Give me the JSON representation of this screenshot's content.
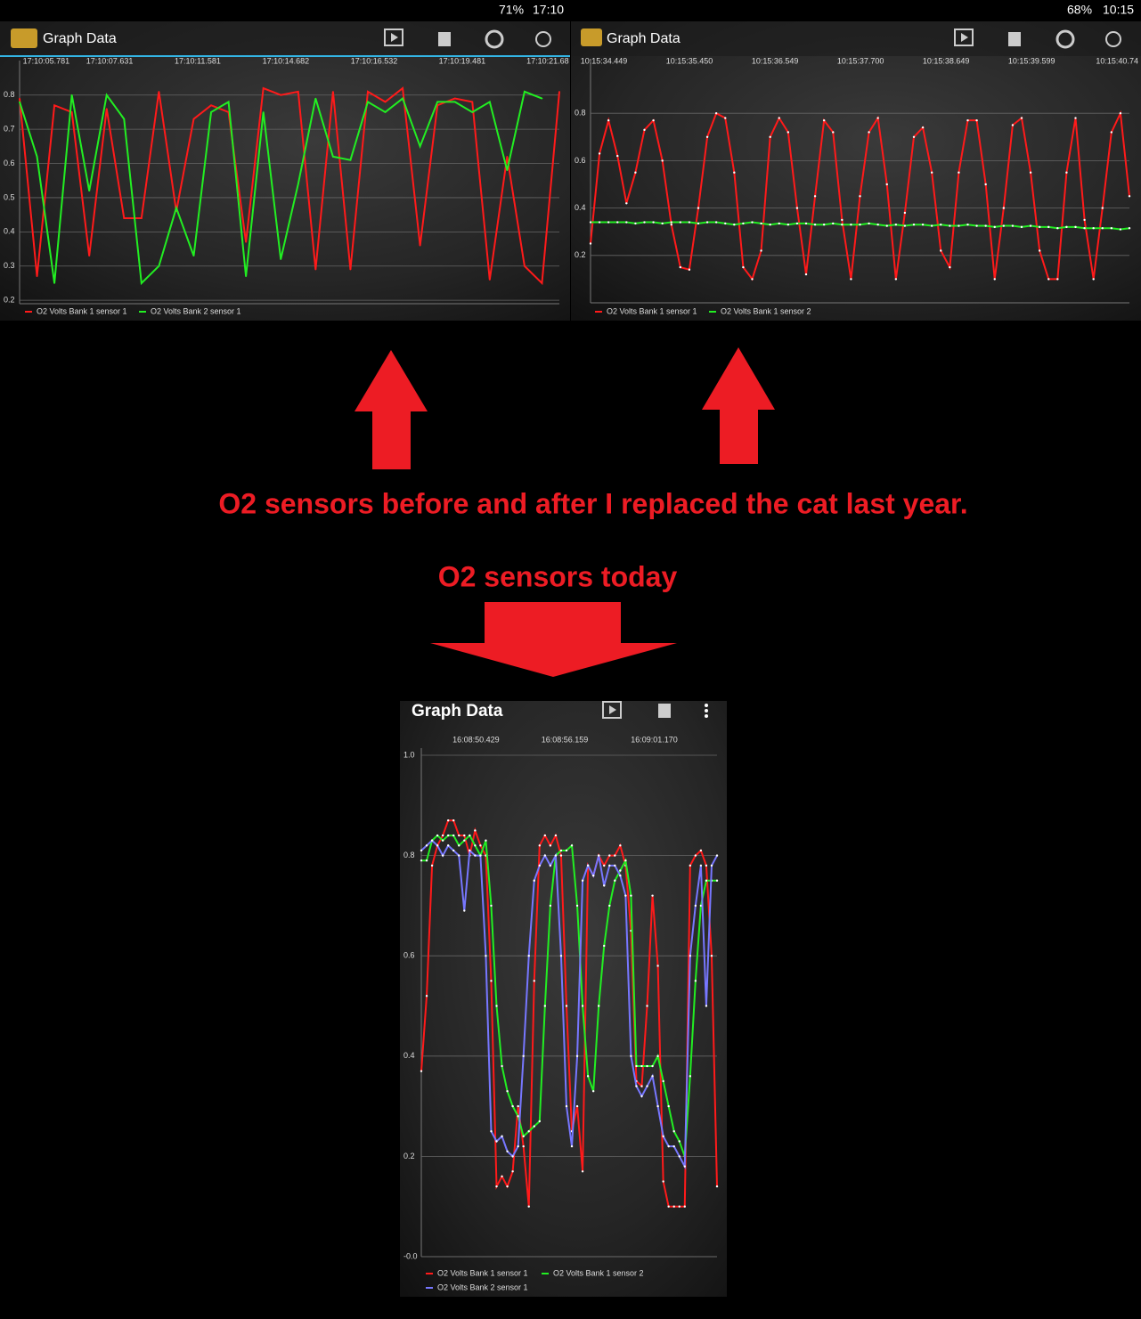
{
  "screens": [
    {
      "battery": "71%",
      "time": "17:10",
      "app_title": "Graph Data"
    },
    {
      "battery": "68%",
      "time": "10:15",
      "app_title": "Graph Data"
    },
    {
      "app_title": "Graph Data"
    }
  ],
  "annotations": [
    "O2 sensors before and after I replaced the cat last year.",
    "O2 sensors today"
  ],
  "chart_data": [
    {
      "type": "line",
      "ylim": [
        0.19,
        0.88
      ],
      "yticks": [
        0.2,
        0.3,
        0.4,
        0.5,
        0.6,
        0.7,
        0.8
      ],
      "grid": true,
      "xlim": [
        0,
        31
      ],
      "xticks": [
        {
          "value": 1.53,
          "label": "17:10:05.781"
        },
        {
          "value": 5.17,
          "label": "17:10:07.631"
        },
        {
          "value": 10.23,
          "label": "17:10:11.581"
        },
        {
          "value": 15.29,
          "label": "17:10:14.682"
        },
        {
          "value": 20.36,
          "label": "17:10:16.532"
        },
        {
          "value": 25.42,
          "label": "17:10:19.481"
        },
        {
          "value": 30.33,
          "label": "17:10:21.68"
        }
      ],
      "series": [
        {
          "name": "O2 Volts Bank 1 sensor 1",
          "color": "#ff1a1a",
          "values": [
            0.79,
            0.27,
            0.77,
            0.75,
            0.33,
            0.76,
            0.44,
            0.44,
            0.81,
            0.46,
            0.73,
            0.77,
            0.75,
            0.37,
            0.82,
            0.8,
            0.81,
            0.29,
            0.81,
            0.29,
            0.81,
            0.78,
            0.82,
            0.36,
            0.77,
            0.79,
            0.78,
            0.26,
            0.62,
            0.3,
            0.25,
            0.81
          ]
        },
        {
          "name": "O2 Volts Bank 2 sensor 1",
          "color": "#22ee22",
          "values": [
            0.78,
            0.62,
            0.25,
            0.8,
            0.52,
            0.8,
            0.73,
            0.25,
            0.3,
            0.47,
            0.33,
            0.75,
            0.78,
            0.27,
            0.75,
            0.32,
            0.54,
            0.79,
            0.62,
            0.61,
            0.78,
            0.75,
            0.79,
            0.65,
            0.78,
            0.78,
            0.75,
            0.78,
            0.58,
            0.81,
            0.79,
            null
          ]
        }
      ]
    },
    {
      "type": "line",
      "ylim": [
        0,
        1.0
      ],
      "yticks": [
        0.2,
        0.4,
        0.6,
        0.8
      ],
      "grid": true,
      "xlim": [
        0,
        60
      ],
      "xticks": [
        {
          "value": 1.49,
          "label": "10:15:34.449"
        },
        {
          "value": 11.01,
          "label": "10:15:35.450"
        },
        {
          "value": 20.54,
          "label": "10:15:36.549"
        },
        {
          "value": 30.06,
          "label": "10:15:37.700"
        },
        {
          "value": 39.58,
          "label": "10:15:38.649"
        },
        {
          "value": 49.11,
          "label": "10:15:39.599"
        },
        {
          "value": 58.63,
          "label": "10:15:40.74"
        }
      ],
      "series": [
        {
          "name": "O2 Volts Bank 1 sensor 1",
          "color": "#ff1a1a",
          "values": [
            0.25,
            0.63,
            0.77,
            0.62,
            0.42,
            0.55,
            0.73,
            0.77,
            0.6,
            0.33,
            0.15,
            0.14,
            0.4,
            0.7,
            0.8,
            0.78,
            0.55,
            0.15,
            0.1,
            0.22,
            0.7,
            0.78,
            0.72,
            0.4,
            0.12,
            0.45,
            0.77,
            0.72,
            0.35,
            0.1,
            0.45,
            0.72,
            0.78,
            0.5,
            0.1,
            0.38,
            0.7,
            0.74,
            0.55,
            0.22,
            0.15,
            0.55,
            0.77,
            0.77,
            0.5,
            0.1,
            0.4,
            0.75,
            0.78,
            0.55,
            0.22,
            0.1,
            0.1,
            0.55,
            0.78,
            0.35,
            0.1,
            0.4,
            0.72,
            0.8,
            0.45
          ]
        },
        {
          "name": "O2 Volts Bank 1 sensor 2",
          "color": "#22ee22",
          "values": [
            0.34,
            0.34,
            0.34,
            0.34,
            0.34,
            0.335,
            0.34,
            0.34,
            0.335,
            0.34,
            0.34,
            0.34,
            0.335,
            0.34,
            0.34,
            0.335,
            0.33,
            0.335,
            0.34,
            0.335,
            0.33,
            0.335,
            0.33,
            0.335,
            0.335,
            0.33,
            0.33,
            0.335,
            0.33,
            0.33,
            0.33,
            0.335,
            0.33,
            0.325,
            0.33,
            0.325,
            0.33,
            0.33,
            0.325,
            0.33,
            0.325,
            0.325,
            0.33,
            0.325,
            0.325,
            0.32,
            0.325,
            0.325,
            0.32,
            0.325,
            0.32,
            0.32,
            0.315,
            0.32,
            0.32,
            0.315,
            0.315,
            0.315,
            0.315,
            0.31,
            0.315
          ]
        }
      ]
    },
    {
      "type": "line",
      "ylim": [
        0,
        1.0
      ],
      "yticks": [
        {
          "value": 0,
          "label": "-0.0"
        },
        0.2,
        0.4,
        0.6,
        0.8,
        {
          "value": 1,
          "label": "1.0"
        }
      ],
      "grid": true,
      "xlim": [
        0,
        55
      ],
      "xticks": [
        {
          "value": 10.17,
          "label": "16:08:50.429"
        },
        {
          "value": 26.67,
          "label": "16:08:56.159"
        },
        {
          "value": 43.33,
          "label": "16:09:01.170"
        }
      ],
      "series": [
        {
          "name": "O2 Volts Bank 1 sensor 1",
          "color": "#ff1a1a",
          "values": [
            0.37,
            0.52,
            0.78,
            0.82,
            0.84,
            0.87,
            0.87,
            0.84,
            0.84,
            0.8,
            0.85,
            0.82,
            0.8,
            0.55,
            0.14,
            0.16,
            0.14,
            0.17,
            0.3,
            0.22,
            0.1,
            0.55,
            0.82,
            0.84,
            0.82,
            0.84,
            0.8,
            0.5,
            0.25,
            0.3,
            0.17,
            0.78,
            0.76,
            0.8,
            0.78,
            0.8,
            0.8,
            0.82,
            0.78,
            0.65,
            0.35,
            0.34,
            0.5,
            0.72,
            0.58,
            0.15,
            0.1,
            0.1,
            0.1,
            0.1,
            0.78,
            0.8,
            0.81,
            0.78,
            0.6,
            0.14
          ]
        },
        {
          "name": "O2 Volts Bank 1 sensor 2",
          "color": "#22ee22",
          "values": [
            0.79,
            0.79,
            0.83,
            0.84,
            0.83,
            0.84,
            0.84,
            0.82,
            0.83,
            0.84,
            0.82,
            0.8,
            0.83,
            0.7,
            0.5,
            0.38,
            0.33,
            0.3,
            0.28,
            0.24,
            0.25,
            0.26,
            0.27,
            0.5,
            0.7,
            0.8,
            0.81,
            0.81,
            0.82,
            0.7,
            0.5,
            0.36,
            0.33,
            0.5,
            0.62,
            0.7,
            0.75,
            0.77,
            0.79,
            0.72,
            0.38,
            0.38,
            0.38,
            0.38,
            0.4,
            0.35,
            0.3,
            0.25,
            0.23,
            0.2,
            0.36,
            0.55,
            0.7,
            0.75,
            0.75,
            0.75
          ]
        },
        {
          "name": "O2 Volts Bank 2 sensor 1",
          "color": "#7777ff",
          "values": [
            0.81,
            0.82,
            0.83,
            0.82,
            0.8,
            0.82,
            0.81,
            0.8,
            0.69,
            0.81,
            0.8,
            0.8,
            0.6,
            0.25,
            0.23,
            0.24,
            0.21,
            0.2,
            0.22,
            0.4,
            0.6,
            0.75,
            0.78,
            0.8,
            0.78,
            0.8,
            0.6,
            0.3,
            0.22,
            0.4,
            0.75,
            0.78,
            0.76,
            0.8,
            0.74,
            0.78,
            0.78,
            0.76,
            0.72,
            0.4,
            0.34,
            0.32,
            0.34,
            0.36,
            0.3,
            0.24,
            0.22,
            0.22,
            0.2,
            0.18,
            0.6,
            0.7,
            0.78,
            0.5,
            0.78,
            0.8
          ]
        }
      ]
    }
  ]
}
